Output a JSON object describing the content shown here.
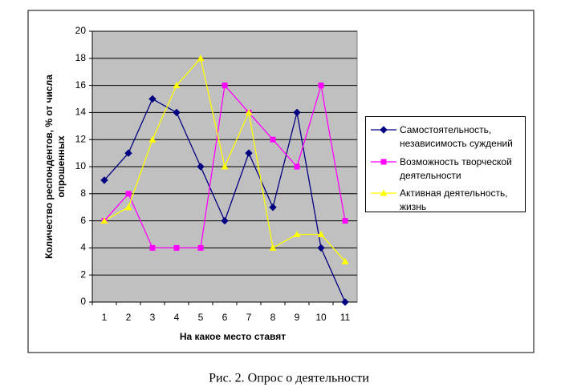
{
  "chart_data": {
    "type": "line",
    "ylabel": [
      "Количество респондентов, % от числа",
      "опрошенных"
    ],
    "xlabel": "На какое место ставят",
    "caption": "Рис. 2. Опрос о деятельности",
    "categories": [
      1,
      2,
      3,
      4,
      5,
      6,
      7,
      8,
      9,
      10,
      11
    ],
    "series": [
      {
        "name": "Самостоятельность, независимость суждений",
        "color": "#000080",
        "marker": "diamond",
        "values": [
          9,
          11,
          15,
          14,
          10,
          6,
          11,
          7,
          14,
          4,
          0
        ]
      },
      {
        "name": "Возможность творческой деятельности",
        "color": "#ff00ff",
        "marker": "square",
        "values": [
          6,
          8,
          4,
          4,
          4,
          16,
          14,
          12,
          10,
          16,
          6
        ]
      },
      {
        "name": "Активная деятельность, жизнь",
        "color": "#ffff00",
        "marker": "triangle",
        "values": [
          6,
          7,
          12,
          16,
          18,
          10,
          14,
          4,
          5,
          5,
          3
        ]
      }
    ],
    "ylim": [
      0,
      20
    ],
    "yticks": [
      0,
      2,
      4,
      6,
      8,
      10,
      12,
      14,
      16,
      18,
      20
    ],
    "grid": true,
    "plot_background": "#c0c0c0"
  }
}
